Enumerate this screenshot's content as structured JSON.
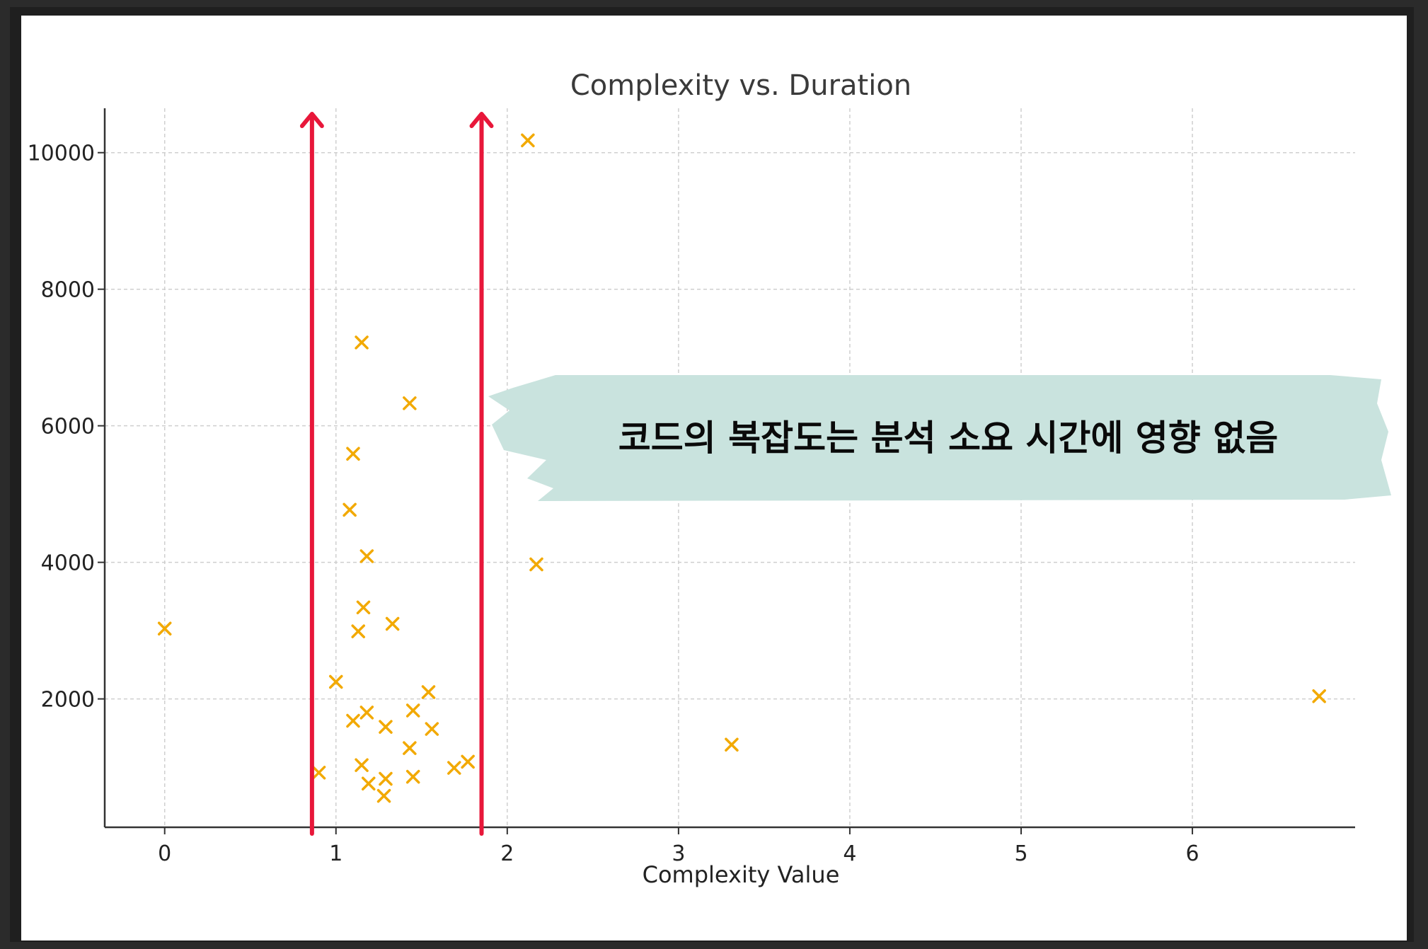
{
  "chart_data": {
    "type": "scatter",
    "title": "Complexity vs. Duration",
    "xlabel": "Complexity Value",
    "ylabel": "",
    "xlim": [
      -0.35,
      6.95
    ],
    "ylim": [
      120,
      10650
    ],
    "xticks": [
      "0",
      "1",
      "2",
      "3",
      "4",
      "5",
      "6"
    ],
    "yticks": [
      "2000",
      "4000",
      "6000",
      "8000",
      "10000"
    ],
    "grid": true,
    "marker": "x",
    "marker_color": "#f2a900",
    "series": [
      {
        "points": [
          [
            0.0,
            3030
          ],
          [
            0.9,
            920
          ],
          [
            1.0,
            2250
          ],
          [
            1.08,
            4770
          ],
          [
            1.1,
            5590
          ],
          [
            1.1,
            1680
          ],
          [
            1.13,
            2990
          ],
          [
            1.15,
            7220
          ],
          [
            1.15,
            1030
          ],
          [
            1.16,
            3340
          ],
          [
            1.18,
            4090
          ],
          [
            1.18,
            1800
          ],
          [
            1.19,
            760
          ],
          [
            1.28,
            580
          ],
          [
            1.29,
            1590
          ],
          [
            1.29,
            830
          ],
          [
            1.33,
            3100
          ],
          [
            1.43,
            6330
          ],
          [
            1.43,
            1280
          ],
          [
            1.45,
            1830
          ],
          [
            1.45,
            860
          ],
          [
            1.54,
            2100
          ],
          [
            1.56,
            1560
          ],
          [
            1.69,
            990
          ],
          [
            1.77,
            1080
          ],
          [
            2.12,
            10180
          ],
          [
            2.17,
            3970
          ],
          [
            3.31,
            1330
          ],
          [
            6.74,
            2040
          ]
        ]
      }
    ],
    "annotations": {
      "arrows_color": "#e8173a",
      "arrow_x": [
        0.86,
        1.85
      ],
      "banner_text": "코드의 복잡도는 분석 소요 시간에 영향 없음",
      "banner_color": "#c9e3de"
    }
  }
}
